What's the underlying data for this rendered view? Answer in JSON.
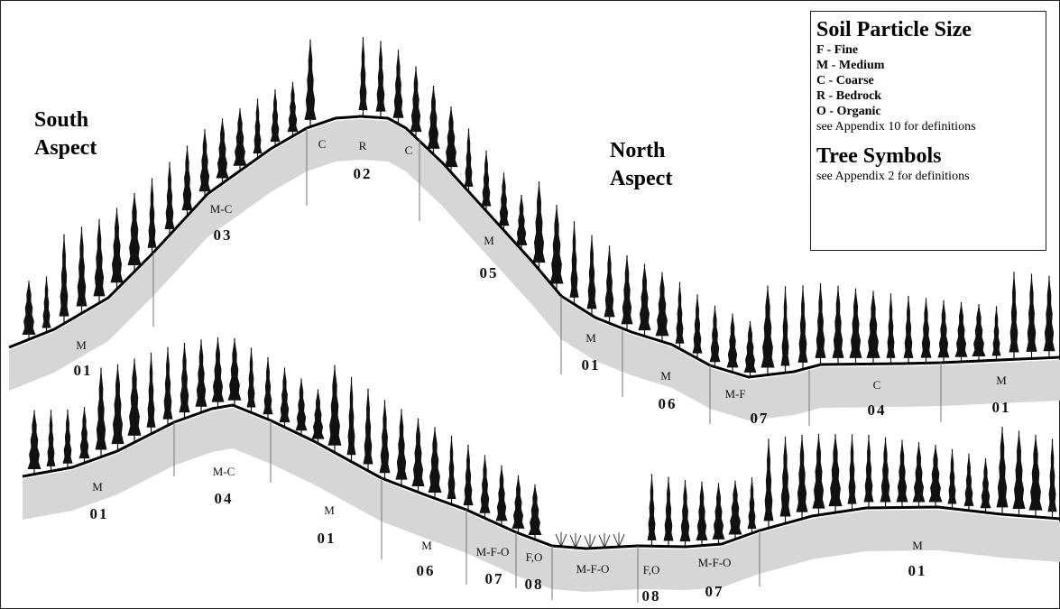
{
  "legend": {
    "title": "Soil Particle Size",
    "items": [
      "F - Fine",
      "M - Medium",
      "C - Coarse",
      "R - Bedrock",
      "O - Organic"
    ],
    "note": "see Appendix 10 for definitions",
    "tree_title": "Tree Symbols",
    "tree_note": "see Appendix 2 for definitions"
  },
  "aspects": [
    "South Aspect",
    "North Aspect"
  ],
  "upper_profile": [
    {
      "soil": "M",
      "unit": "01"
    },
    {
      "soil": "M-C",
      "unit": "03"
    },
    {
      "soil": "C"
    },
    {
      "soil": "R",
      "unit": "02"
    },
    {
      "soil": "C"
    },
    {
      "soil": "M",
      "unit": "05"
    },
    {
      "soil": "M",
      "unit": "01"
    },
    {
      "soil": "M",
      "unit": "06"
    },
    {
      "soil": "M-F",
      "unit": "07"
    },
    {
      "soil": "C",
      "unit": "04"
    },
    {
      "soil": "M",
      "unit": "01"
    }
  ],
  "lower_profile": [
    {
      "soil": "M",
      "unit": "01"
    },
    {
      "soil": "M-C",
      "unit": "04"
    },
    {
      "soil": "M",
      "unit": "01"
    },
    {
      "soil": "M",
      "unit": "06"
    },
    {
      "soil": "M-F-O",
      "unit": "07"
    },
    {
      "soil": "F,O",
      "unit": "08"
    },
    {
      "soil": "M-F-O"
    },
    {
      "soil": "F,O",
      "unit": "08"
    },
    {
      "soil": "M-F-O",
      "unit": "07"
    },
    {
      "soil": "M",
      "unit": "01"
    }
  ]
}
